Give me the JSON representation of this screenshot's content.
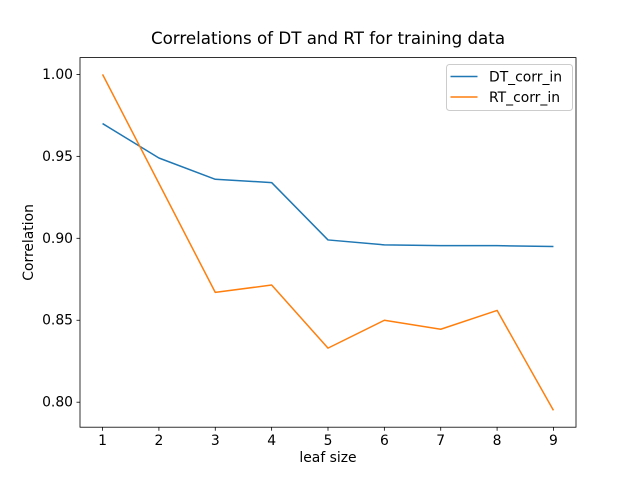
{
  "chart_data": {
    "type": "line",
    "title": "Correlations of DT and RT for training data",
    "xlabel": "leaf size",
    "ylabel": "Correlation",
    "x": [
      1,
      2,
      3,
      4,
      5,
      6,
      7,
      8,
      9
    ],
    "series": [
      {
        "name": "DT_corr_in",
        "color": "#1f77b4",
        "values": [
          0.97,
          0.949,
          0.936,
          0.934,
          0.899,
          0.896,
          0.8955,
          0.8955,
          0.895
        ]
      },
      {
        "name": "RT_corr_in",
        "color": "#ff7f0e",
        "values": [
          1.0,
          0.9335,
          0.867,
          0.8715,
          0.833,
          0.85,
          0.8445,
          0.856,
          0.795
        ]
      }
    ],
    "xlim": [
      0.6,
      9.4
    ],
    "ylim": [
      0.78475,
      1.01025
    ],
    "xticks": [
      1,
      2,
      3,
      4,
      5,
      6,
      7,
      8,
      9
    ],
    "xtick_labels": [
      "1",
      "2",
      "3",
      "4",
      "5",
      "6",
      "7",
      "8",
      "9"
    ],
    "yticks": [
      0.8,
      0.85,
      0.9,
      0.95,
      1.0
    ],
    "ytick_labels": [
      "0.80",
      "0.85",
      "0.90",
      "0.95",
      "1.00"
    ],
    "grid": false,
    "legend": {
      "position": "upper right"
    },
    "background_color": "#ffffff",
    "text_color": "#000000"
  }
}
